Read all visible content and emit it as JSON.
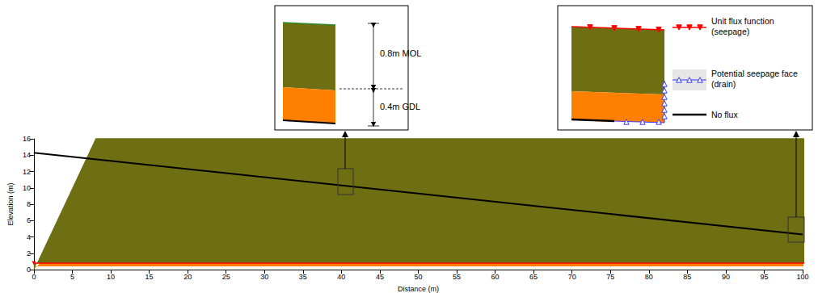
{
  "chart_data": {
    "type": "area",
    "x": [
      0,
      100
    ],
    "bottom_elevation": [
      14.3,
      4.3
    ],
    "layers": [
      {
        "label": "0.4m GDL",
        "thickness": [
          0.4,
          0.4
        ],
        "color": "#ff8000"
      },
      {
        "label": "0.8m MOL",
        "thickness": [
          0.8,
          0.8
        ],
        "color": "#6e6e12"
      }
    ],
    "boundaries": [
      {
        "label": "Unit flux function (seepage)",
        "color": "#ff0000",
        "marker": "triangle-down",
        "line_style": "solid"
      },
      {
        "label": "Potential seepage face (drain)",
        "color": "#3a3aff",
        "marker": "triangle-open",
        "line_style": "solid"
      },
      {
        "label": "No flux",
        "color": "#000000",
        "line_style": "solid"
      }
    ],
    "xlabel": "Distance (m)",
    "ylabel": "Elevation (m)",
    "xlim": [
      0,
      100
    ],
    "ylim": [
      0,
      16
    ],
    "xticks": [
      0,
      5,
      10,
      15,
      20,
      25,
      30,
      35,
      40,
      45,
      50,
      55,
      60,
      65,
      70,
      75,
      80,
      85,
      90,
      95,
      100
    ],
    "yticks": [
      0,
      2,
      4,
      6,
      8,
      10,
      12,
      14,
      16
    ],
    "grid": false
  }
}
